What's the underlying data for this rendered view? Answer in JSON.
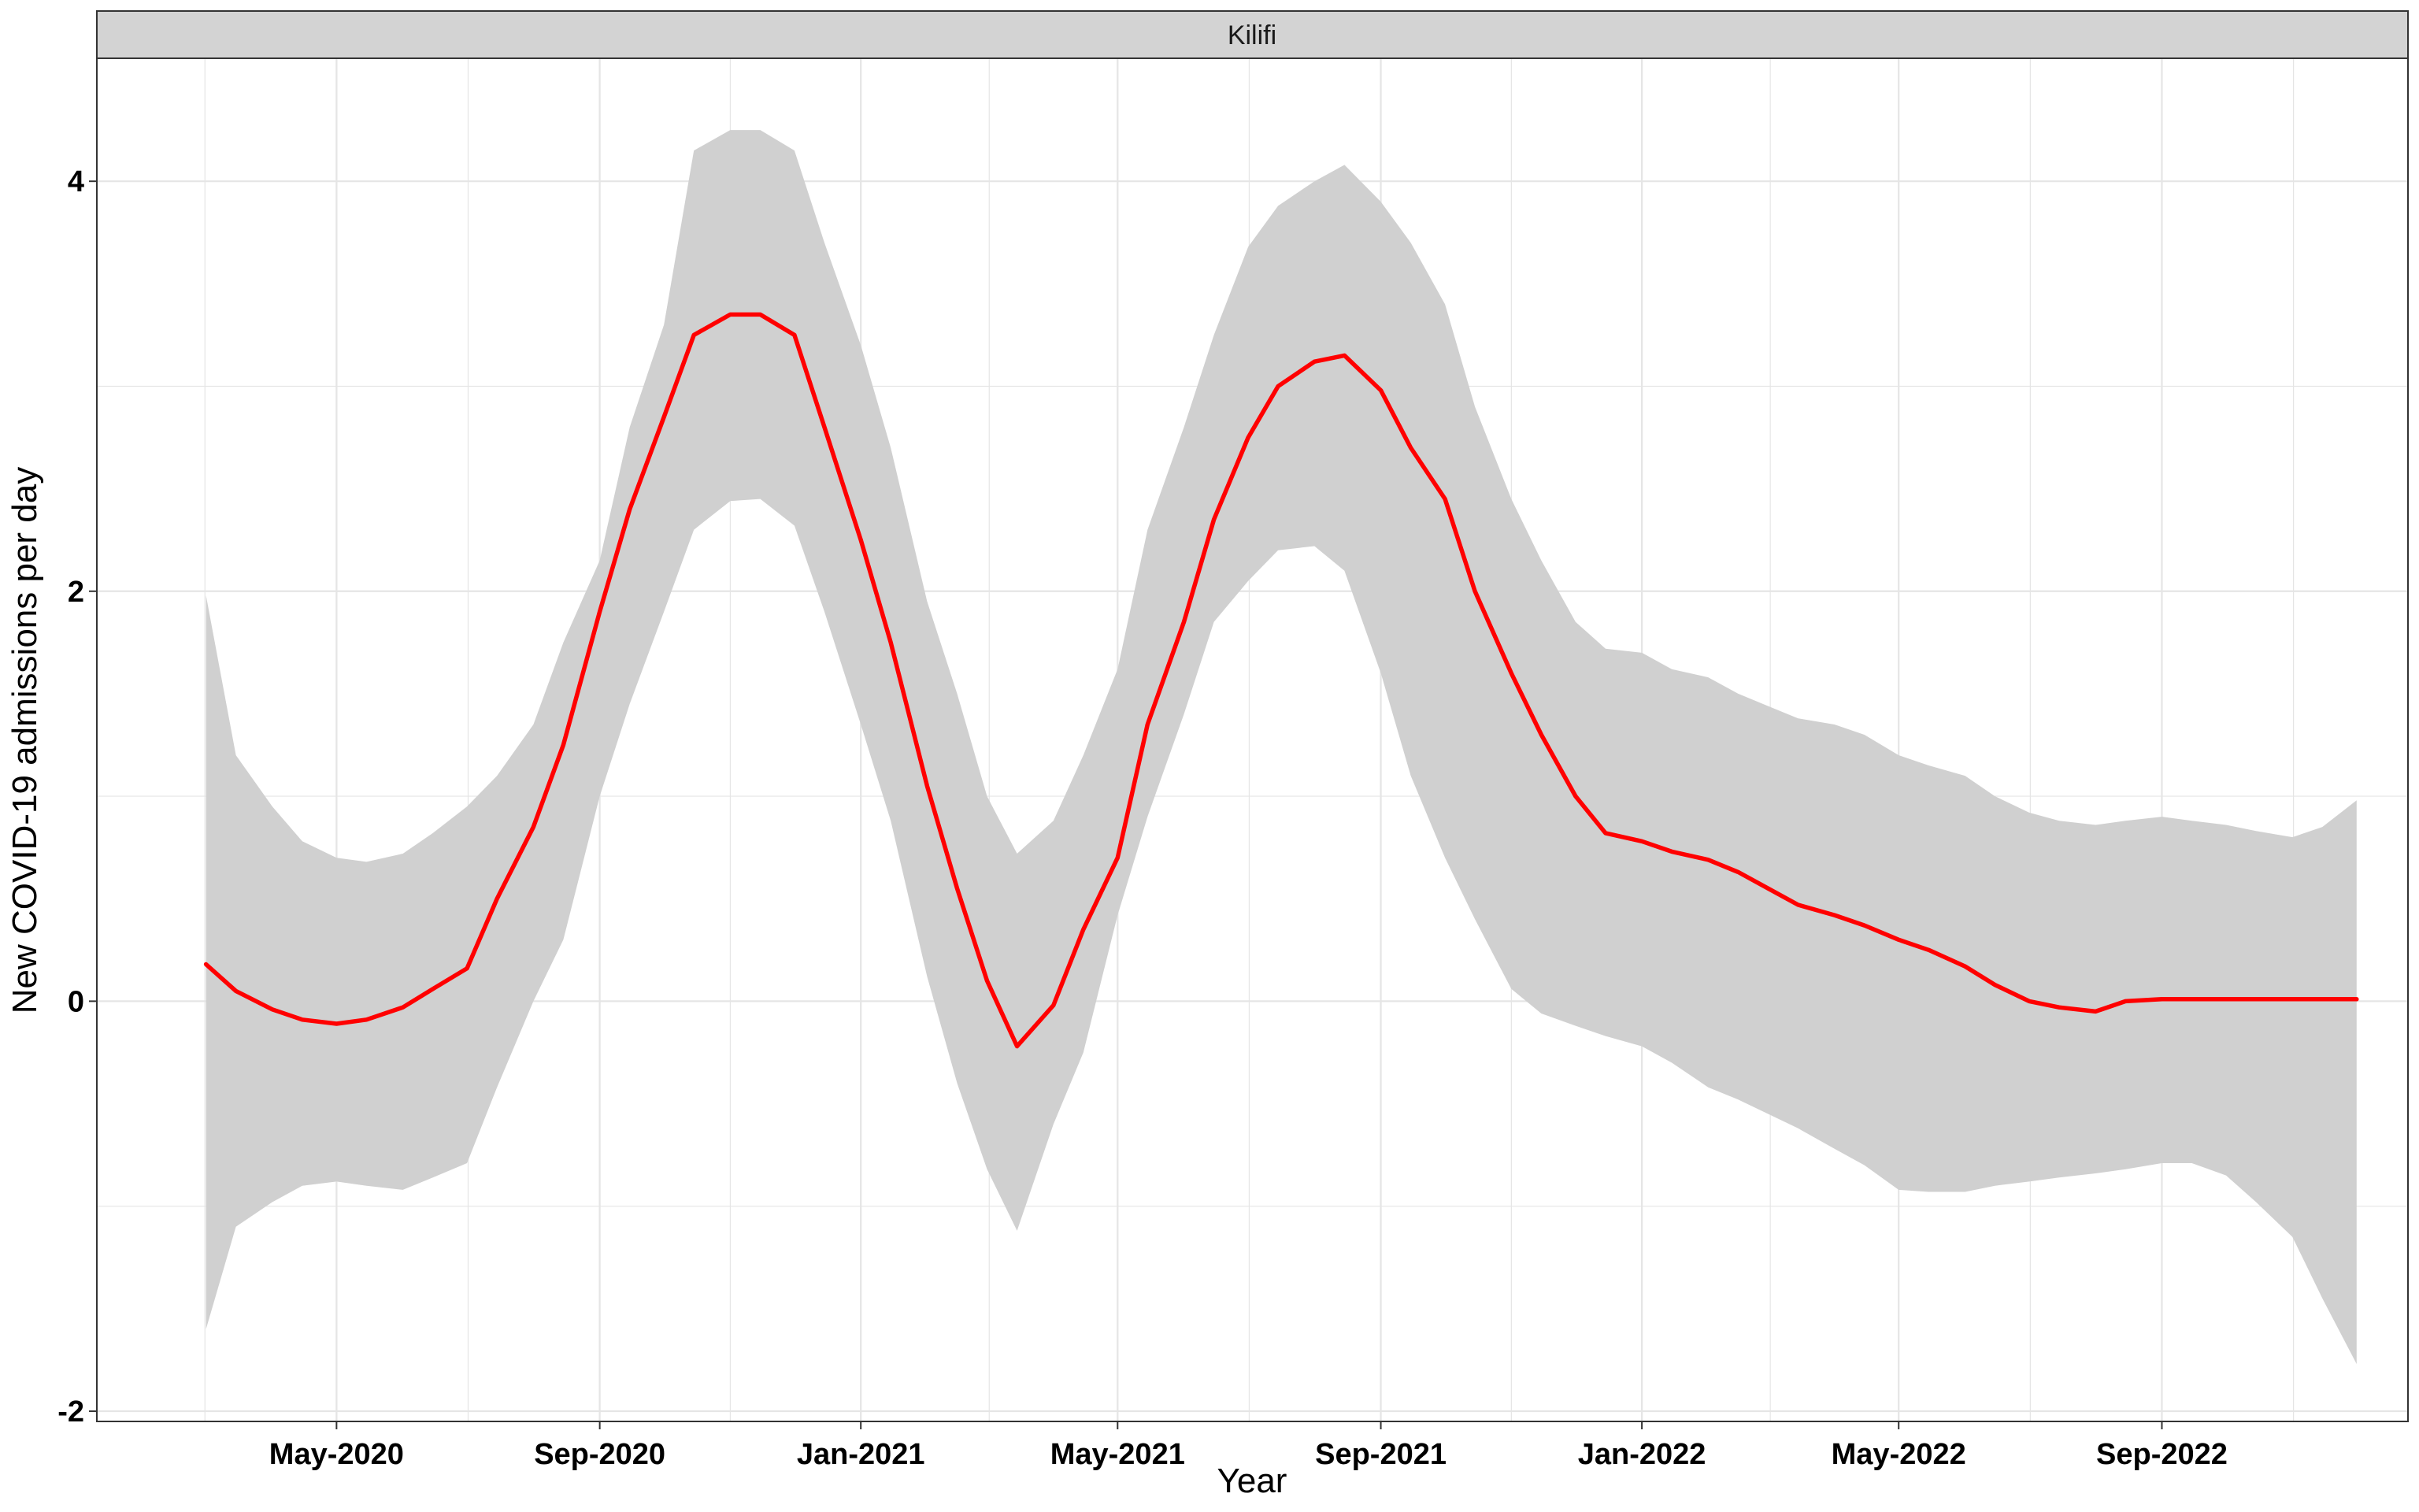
{
  "chart_data": {
    "type": "line",
    "facet_label": "Kilifi",
    "xlabel": "Year",
    "ylabel": "New COVID-19 admissions per day",
    "ylim": [
      -2.05,
      4.6
    ],
    "y_ticks": [
      -2,
      0,
      2,
      4
    ],
    "x_range": [
      "2020-01-10",
      "2022-12-25"
    ],
    "x_ticks": [
      {
        "date": "2020-05-01",
        "label": "May-2020"
      },
      {
        "date": "2020-09-01",
        "label": "Sep-2020"
      },
      {
        "date": "2021-01-01",
        "label": "Jan-2021"
      },
      {
        "date": "2021-05-01",
        "label": "May-2021"
      },
      {
        "date": "2021-09-01",
        "label": "Sep-2021"
      },
      {
        "date": "2022-01-01",
        "label": "Jan-2022"
      },
      {
        "date": "2022-05-01",
        "label": "May-2022"
      },
      {
        "date": "2022-09-01",
        "label": "Sep-2022"
      }
    ],
    "grid": true,
    "colors": {
      "line": "#ff0000",
      "ribbon": "#d0d0d0",
      "grid": "#e5e5e5",
      "strip": "#d3d3d3"
    },
    "series": [
      {
        "x": [
          "2020-03-01",
          "2020-03-15",
          "2020-04-01",
          "2020-04-15",
          "2020-05-01",
          "2020-05-15",
          "2020-06-01",
          "2020-06-15",
          "2020-07-01",
          "2020-07-15",
          "2020-08-01",
          "2020-08-15",
          "2020-09-01",
          "2020-09-15",
          "2020-10-01",
          "2020-10-15",
          "2020-11-01",
          "2020-11-15",
          "2020-12-01",
          "2020-12-15",
          "2021-01-01",
          "2021-01-15",
          "2021-02-01",
          "2021-02-15",
          "2021-03-01",
          "2021-03-15",
          "2021-04-01",
          "2021-04-15",
          "2021-05-01",
          "2021-05-15",
          "2021-06-01",
          "2021-06-15",
          "2021-07-01",
          "2021-07-15",
          "2021-08-01",
          "2021-08-15",
          "2021-09-01",
          "2021-09-15",
          "2021-10-01",
          "2021-10-15",
          "2021-11-01",
          "2021-11-15",
          "2021-12-01",
          "2021-12-15",
          "2022-01-01",
          "2022-01-15",
          "2022-02-01",
          "2022-02-15",
          "2022-03-01",
          "2022-03-15",
          "2022-04-01",
          "2022-04-15",
          "2022-05-01",
          "2022-05-15",
          "2022-06-01",
          "2022-06-15",
          "2022-07-01",
          "2022-07-15",
          "2022-08-01",
          "2022-08-15",
          "2022-09-01",
          "2022-09-15",
          "2022-10-01",
          "2022-10-15",
          "2022-11-01",
          "2022-11-15",
          "2022-12-01"
        ],
        "y": [
          0.18,
          0.05,
          -0.04,
          -0.09,
          -0.11,
          -0.09,
          -0.03,
          0.06,
          0.16,
          0.5,
          0.85,
          1.25,
          1.9,
          2.4,
          2.85,
          3.25,
          3.35,
          3.35,
          3.25,
          2.8,
          2.25,
          1.75,
          1.05,
          0.55,
          0.1,
          -0.22,
          -0.02,
          0.35,
          0.7,
          1.35,
          1.85,
          2.35,
          2.75,
          3.0,
          3.12,
          3.15,
          2.98,
          2.7,
          2.45,
          2.0,
          1.6,
          1.3,
          1.0,
          0.82,
          0.78,
          0.73,
          0.69,
          0.63,
          0.55,
          0.47,
          0.42,
          0.37,
          0.3,
          0.25,
          0.17,
          0.08,
          0.0,
          -0.03,
          -0.05,
          0.0,
          0.01,
          0.01,
          0.01,
          0.01,
          0.01,
          0.01,
          0.01
        ],
        "lower": [
          -1.6,
          -1.1,
          -0.98,
          -0.9,
          -0.88,
          -0.9,
          -0.92,
          -0.86,
          -0.79,
          -0.42,
          0.0,
          0.3,
          1.0,
          1.45,
          1.9,
          2.3,
          2.44,
          2.45,
          2.32,
          1.9,
          1.35,
          0.88,
          0.12,
          -0.4,
          -0.82,
          -1.12,
          -0.6,
          -0.25,
          0.42,
          0.9,
          1.4,
          1.85,
          2.05,
          2.2,
          2.22,
          2.1,
          1.6,
          1.1,
          0.7,
          0.4,
          0.06,
          -0.06,
          -0.12,
          -0.17,
          -0.22,
          -0.3,
          -0.42,
          -0.48,
          -0.55,
          -0.62,
          -0.72,
          -0.8,
          -0.92,
          -0.93,
          -0.93,
          -0.9,
          -0.88,
          -0.86,
          -0.84,
          -0.82,
          -0.79,
          -0.79,
          -0.85,
          -0.98,
          -1.15,
          -1.45,
          -1.77
        ],
        "upper": [
          1.98,
          1.2,
          0.95,
          0.78,
          0.7,
          0.68,
          0.72,
          0.82,
          0.95,
          1.1,
          1.35,
          1.75,
          2.15,
          2.8,
          3.3,
          4.15,
          4.25,
          4.25,
          4.15,
          3.7,
          3.2,
          2.7,
          1.95,
          1.5,
          1.0,
          0.72,
          0.88,
          1.2,
          1.62,
          2.3,
          2.8,
          3.25,
          3.68,
          3.88,
          4.0,
          4.08,
          3.9,
          3.7,
          3.4,
          2.9,
          2.45,
          2.15,
          1.85,
          1.72,
          1.7,
          1.62,
          1.58,
          1.5,
          1.44,
          1.38,
          1.35,
          1.3,
          1.2,
          1.15,
          1.1,
          1.0,
          0.92,
          0.88,
          0.86,
          0.88,
          0.9,
          0.88,
          0.86,
          0.83,
          0.8,
          0.85,
          0.98
        ]
      }
    ]
  }
}
